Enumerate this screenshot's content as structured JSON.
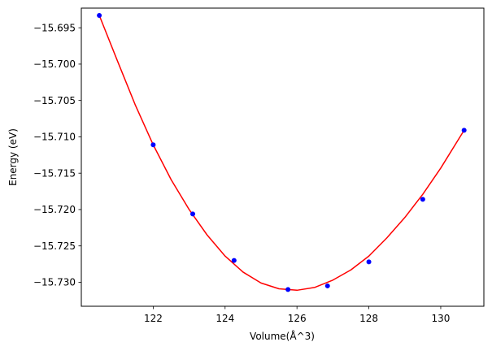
{
  "chart_data": {
    "type": "scatter",
    "title": "",
    "xlabel": "Volume(Å^3)",
    "ylabel": "Energy (eV)",
    "xlim": [
      120.0,
      131.2
    ],
    "ylim": [
      -15.7333,
      -15.6923
    ],
    "xticks": [
      122,
      124,
      126,
      128,
      130
    ],
    "yticks": [
      -15.73,
      -15.725,
      -15.72,
      -15.715,
      -15.71,
      -15.705,
      -15.7,
      -15.695
    ],
    "xtick_labels": [
      "122",
      "124",
      "126",
      "128",
      "130"
    ],
    "ytick_labels": [
      "−15.730",
      "−15.725",
      "−15.720",
      "−15.715",
      "−15.710",
      "−15.705",
      "−15.700",
      "−15.695"
    ],
    "grid": false,
    "legend": "none",
    "series": [
      {
        "kind": "points",
        "color": "#0000ff",
        "x": [
          120.5,
          122.0,
          123.1,
          124.25,
          125.75,
          126.85,
          128.0,
          129.5,
          130.65
        ],
        "y": [
          -15.6933,
          -15.7111,
          -15.7206,
          -15.727,
          -15.731,
          -15.7305,
          -15.7272,
          -15.7186,
          -15.7091
        ]
      },
      {
        "kind": "fit-curve",
        "color": "#ff0000",
        "x": [
          120.5,
          121.0,
          121.5,
          122.0,
          122.5,
          123.0,
          123.5,
          124.0,
          124.5,
          125.0,
          125.5,
          126.0,
          126.5,
          127.0,
          127.5,
          128.0,
          128.5,
          129.0,
          129.5,
          130.0,
          130.65
        ],
        "y": [
          -15.6933,
          -15.6995,
          -15.7056,
          -15.7111,
          -15.7159,
          -15.72,
          -15.7235,
          -15.7264,
          -15.7286,
          -15.7301,
          -15.7309,
          -15.7311,
          -15.7307,
          -15.7297,
          -15.7283,
          -15.7264,
          -15.7239,
          -15.7211,
          -15.7179,
          -15.7143,
          -15.7091
        ]
      }
    ]
  }
}
